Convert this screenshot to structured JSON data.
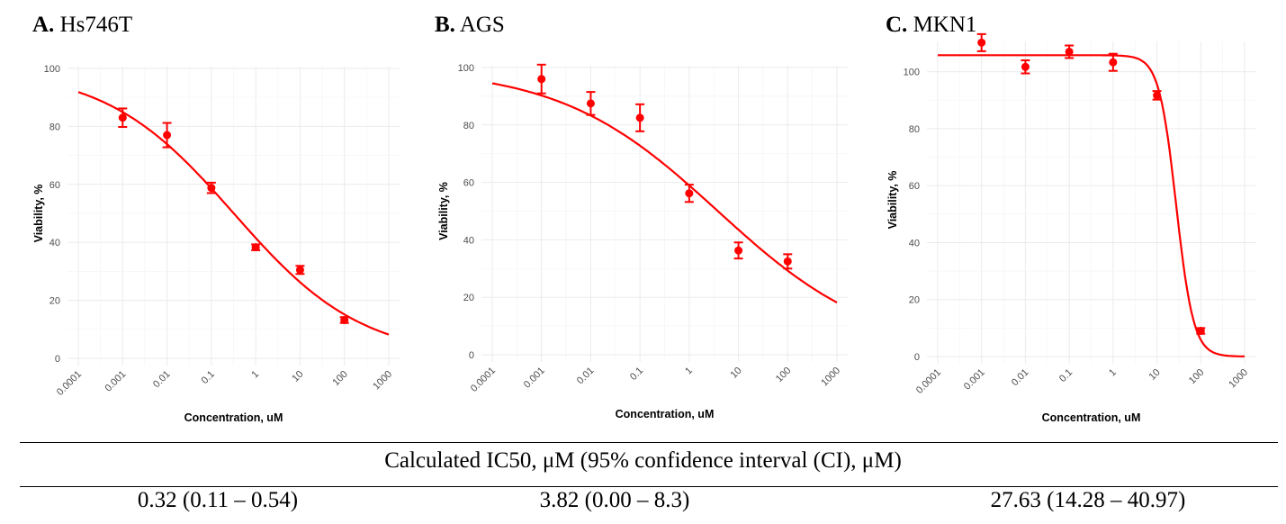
{
  "panels": [
    {
      "letter": "A.",
      "name": "Hs746T"
    },
    {
      "letter": "B.",
      "name": "AGS"
    },
    {
      "letter": "C.",
      "name": "MKN1"
    }
  ],
  "chart_data": [
    {
      "type": "scatter",
      "title": "A. Hs746T",
      "xlabel": "Concentration, uM",
      "ylabel": "Viability, %",
      "x_scale": "log",
      "x_ticks": [
        "0.0001",
        "0.001",
        "0.01",
        "0.1",
        "1",
        "10",
        "100",
        "1000"
      ],
      "y_ticks": [
        "0",
        "20",
        "40",
        "60",
        "80",
        "100"
      ],
      "ylim": [
        0,
        100
      ],
      "grid": true,
      "color": "#ff0000",
      "series": [
        {
          "x": [
            0.001,
            0.01,
            0.1,
            1,
            10,
            100
          ],
          "y": [
            83,
            77,
            58.8,
            38.3,
            30.5,
            13.2
          ],
          "err": [
            3.2,
            4.2,
            1.8,
            1.0,
            1.4,
            1.0
          ]
        }
      ],
      "fit": {
        "top": 100,
        "bottom": 0,
        "ic50": 0.32,
        "hill": 0.3
      }
    },
    {
      "type": "scatter",
      "title": "B. AGS",
      "xlabel": "Concentration, uM",
      "ylabel": "Viability, %",
      "x_scale": "log",
      "x_ticks": [
        "0.0001",
        "0.001",
        "0.01",
        "0.1",
        "1",
        "10",
        "100",
        "1000"
      ],
      "y_ticks": [
        "0",
        "20",
        "40",
        "60",
        "80",
        "100"
      ],
      "ylim": [
        0,
        100
      ],
      "grid": true,
      "color": "#ff0000",
      "series": [
        {
          "x": [
            0.001,
            0.01,
            0.1,
            1,
            10,
            100
          ],
          "y": [
            96,
            87.5,
            82.5,
            56.2,
            36.3,
            32.5
          ],
          "err": [
            5,
            4,
            4.7,
            3,
            2.8,
            2.5
          ]
        }
      ],
      "fit": {
        "top": 100,
        "bottom": 0,
        "ic50": 3.82,
        "hill": 0.27
      }
    },
    {
      "type": "scatter",
      "title": "C. MKN1",
      "xlabel": "Concentration, uM",
      "ylabel": "Viability, %",
      "x_scale": "log",
      "x_ticks": [
        "0.0001",
        "0.001",
        "0.01",
        "0.1",
        "1",
        "10",
        "100",
        "1000"
      ],
      "y_ticks": [
        "0",
        "20",
        "40",
        "60",
        "80",
        "100"
      ],
      "ylim": [
        0,
        110
      ],
      "grid": true,
      "color": "#ff0000",
      "series": [
        {
          "x": [
            0.001,
            0.01,
            0.1,
            1,
            10,
            100
          ],
          "y": [
            110.2,
            101.7,
            107,
            103.3,
            91.7,
            9
          ],
          "err": [
            3,
            2.3,
            2.2,
            3,
            1.5,
            1
          ]
        }
      ],
      "fit": {
        "top": 105.8,
        "bottom": 0,
        "ic50": 27.63,
        "hill": 2.2
      }
    }
  ],
  "ic50": {
    "heading": "Calculated IC50, μM (95% confidence interval (CI), μM)",
    "values": [
      "0.32 (0.11 – 0.54)",
      "3.82 (0.00 – 8.3)",
      "27.63 (14.28 – 40.97)"
    ]
  }
}
